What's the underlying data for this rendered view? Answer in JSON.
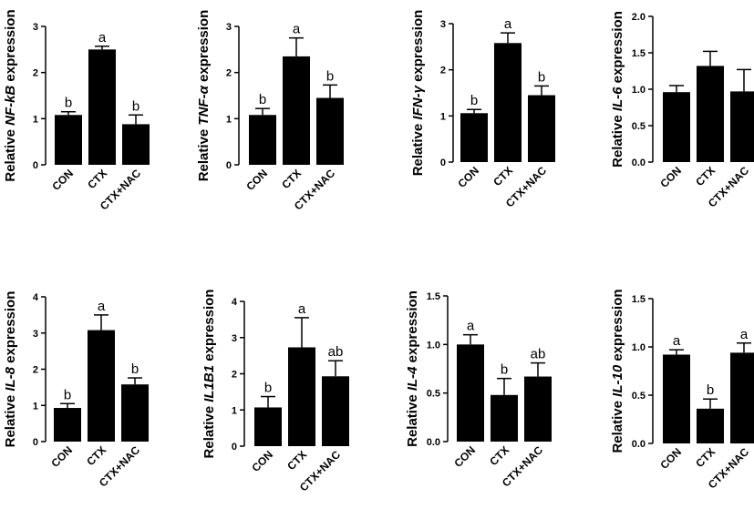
{
  "chart_data": [
    {
      "type": "bar",
      "ylabel": {
        "prefix": "Relative ",
        "gene": "NF-kB",
        "suffix": " expression"
      },
      "categories": [
        "CON",
        "CTX",
        "CTX+NAC"
      ],
      "values": [
        1.08,
        2.5,
        0.88
      ],
      "errors": [
        0.07,
        0.07,
        0.2
      ],
      "significance": [
        "b",
        "a",
        "b"
      ],
      "ylim": [
        0,
        3
      ],
      "yticks": [
        "0",
        "1",
        "2",
        "3"
      ],
      "ytick_values": [
        0,
        1,
        2,
        3
      ],
      "color": "#000000"
    },
    {
      "type": "bar",
      "ylabel": {
        "prefix": "Relative ",
        "gene": "TNF-α",
        "suffix": " expression"
      },
      "categories": [
        "CON",
        "CTX",
        "CTX+NAC"
      ],
      "values": [
        1.08,
        2.35,
        1.45
      ],
      "errors": [
        0.14,
        0.4,
        0.28
      ],
      "significance": [
        "b",
        "a",
        "b"
      ],
      "ylim": [
        0,
        3
      ],
      "yticks": [
        "0",
        "1",
        "2",
        "3"
      ],
      "ytick_values": [
        0,
        1,
        2,
        3
      ],
      "color": "#000000"
    },
    {
      "type": "bar",
      "ylabel": {
        "prefix": "Relative ",
        "gene": "IFN-γ",
        "suffix": " expression"
      },
      "categories": [
        "CON",
        "CTX",
        "CTX+NAC"
      ],
      "values": [
        1.06,
        2.58,
        1.45
      ],
      "errors": [
        0.08,
        0.22,
        0.2
      ],
      "significance": [
        "b",
        "a",
        "b"
      ],
      "ylim": [
        0,
        3
      ],
      "yticks": [
        "0",
        "1",
        "2",
        "3"
      ],
      "ytick_values": [
        0,
        1,
        2,
        3
      ],
      "color": "#000000"
    },
    {
      "type": "bar",
      "ylabel": {
        "prefix": "Relative ",
        "gene": "IL-6",
        "suffix": " expression"
      },
      "categories": [
        "CON",
        "CTX",
        "CTX+NAC"
      ],
      "values": [
        0.96,
        1.32,
        0.97
      ],
      "errors": [
        0.09,
        0.2,
        0.3
      ],
      "significance": [
        "",
        "",
        ""
      ],
      "ylim": [
        0,
        2
      ],
      "yticks": [
        "0.0",
        "0.5",
        "1.0",
        "1.5",
        "2.0"
      ],
      "ytick_values": [
        0,
        0.5,
        1,
        1.5,
        2
      ],
      "color": "#000000"
    },
    {
      "type": "bar",
      "ylabel": {
        "prefix": "Relative ",
        "gene": "IL-8",
        "suffix": " expression"
      },
      "categories": [
        "CON",
        "CTX",
        "CTX+NAC"
      ],
      "values": [
        0.93,
        3.08,
        1.58
      ],
      "errors": [
        0.12,
        0.42,
        0.18
      ],
      "significance": [
        "b",
        "a",
        "b"
      ],
      "ylim": [
        0,
        4
      ],
      "yticks": [
        "0",
        "1",
        "2",
        "3",
        "4"
      ],
      "ytick_values": [
        0,
        1,
        2,
        3,
        4
      ],
      "color": "#000000"
    },
    {
      "type": "bar",
      "ylabel": {
        "prefix": "Relative ",
        "gene": "IL1B1",
        "suffix": " expression"
      },
      "categories": [
        "CON",
        "CTX",
        "CTX+NAC"
      ],
      "values": [
        1.07,
        2.73,
        1.93
      ],
      "errors": [
        0.3,
        0.82,
        0.43
      ],
      "significance": [
        "b",
        "a",
        "ab"
      ],
      "ylim": [
        0,
        4
      ],
      "yticks": [
        "0",
        "1",
        "2",
        "3",
        "4"
      ],
      "ytick_values": [
        0,
        1,
        2,
        3,
        4
      ],
      "color": "#000000"
    },
    {
      "type": "bar",
      "ylabel": {
        "prefix": "Relative ",
        "gene": "IL-4",
        "suffix": " expression"
      },
      "categories": [
        "CON",
        "CTX",
        "CTX+NAC"
      ],
      "values": [
        1.0,
        0.48,
        0.67
      ],
      "errors": [
        0.1,
        0.17,
        0.14
      ],
      "significance": [
        "a",
        "b",
        "ab"
      ],
      "ylim": [
        0,
        1.5
      ],
      "yticks": [
        "0.0",
        "0.5",
        "1.0",
        "1.5"
      ],
      "ytick_values": [
        0,
        0.5,
        1,
        1.5
      ],
      "color": "#000000"
    },
    {
      "type": "bar",
      "ylabel": {
        "prefix": "Relative ",
        "gene": "IL-10",
        "suffix": " expression"
      },
      "categories": [
        "CON",
        "CTX",
        "CTX+NAC"
      ],
      "values": [
        0.92,
        0.36,
        0.94
      ],
      "errors": [
        0.05,
        0.1,
        0.1
      ],
      "significance": [
        "a",
        "b",
        "a"
      ],
      "ylim": [
        0,
        1.5
      ],
      "yticks": [
        "0.0",
        "0.5",
        "1.0",
        "1.5"
      ],
      "ytick_values": [
        0,
        0.5,
        1,
        1.5
      ],
      "color": "#000000"
    }
  ]
}
